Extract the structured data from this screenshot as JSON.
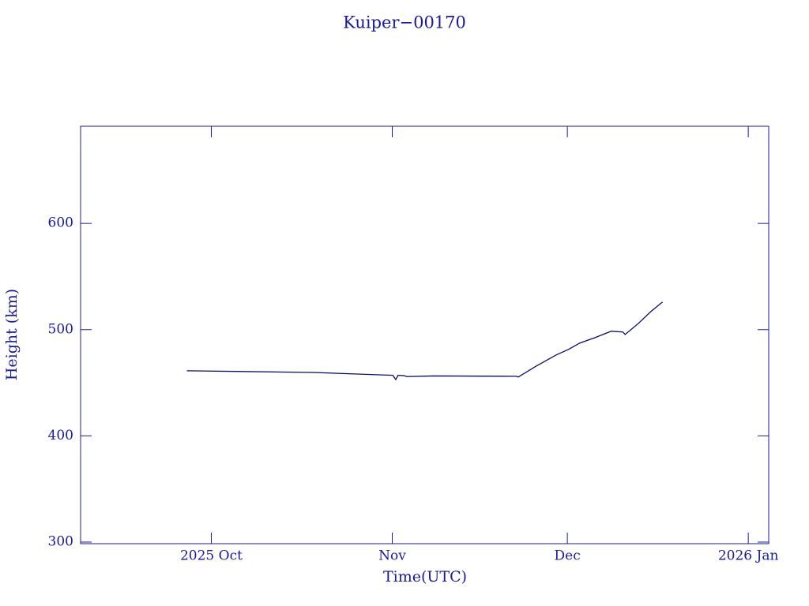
{
  "chart_data": {
    "type": "line",
    "title": "Kuiper−00170",
    "x_label": "Time(UTC)",
    "y_label": "Height (km)",
    "x": [
      -4.2,
      4.3,
      17.8,
      31.1,
      31.6,
      32.0,
      33.0,
      33.5,
      38.1,
      52.3,
      52.6,
      55.7,
      59.1,
      61.2,
      63.1,
      65.8,
      68.5,
      70.5,
      70.9,
      73.2,
      75.3,
      77.3
    ],
    "series": [
      {
        "name": "Kuiper−00170",
        "color": "#0a0a6e",
        "values": [
          461.3,
          460.7,
          459.6,
          457.0,
          453.0,
          457.0,
          456.7,
          455.8,
          456.4,
          456.1,
          455.4,
          465.8,
          476.2,
          481.4,
          487.3,
          492.6,
          498.5,
          497.8,
          495.5,
          506.0,
          517.0,
          526.0
        ]
      }
    ],
    "xlim": [
      -22.4,
      95.5
    ],
    "xticks": [
      {
        "value": 0,
        "label": "2025 Oct"
      },
      {
        "value": 31,
        "label": "Nov"
      },
      {
        "value": 61,
        "label": "Dec"
      },
      {
        "value": 92,
        "label": "2026 Jan"
      }
    ],
    "ylim": [
      298.5,
      691.5
    ],
    "yticks": [
      300,
      400,
      500,
      600
    ],
    "grid": false
  }
}
